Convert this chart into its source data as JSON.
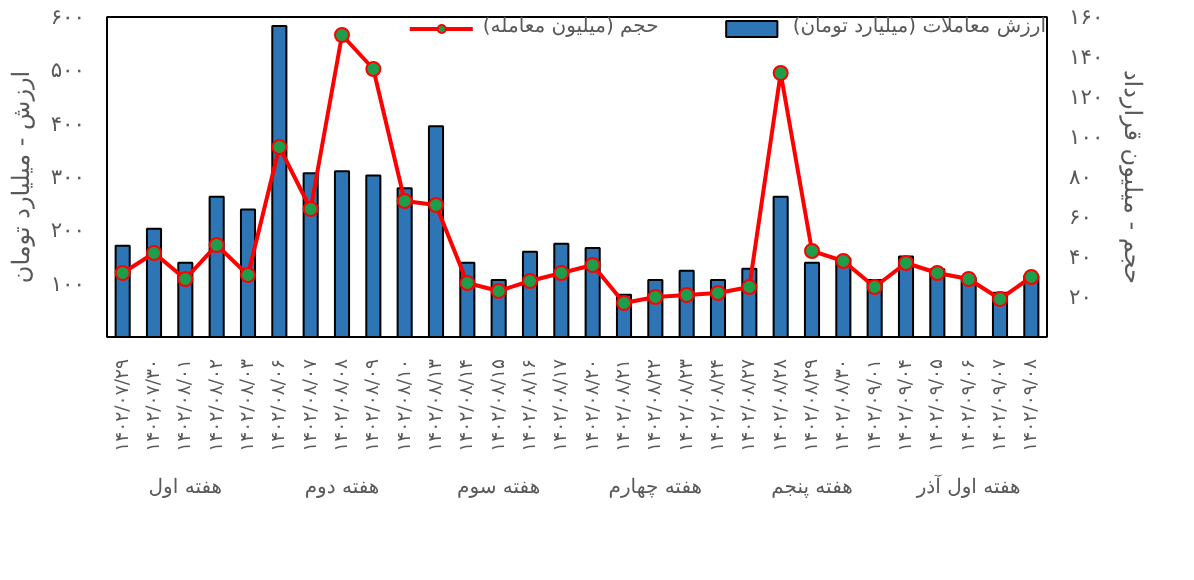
{
  "chart_data": {
    "type": "bar",
    "categories": [
      "۱۴۰۲/۰۷/۲۹",
      "۱۴۰۲/۰۷/۳۰",
      "۱۴۰۲/۰۸/۰۱",
      "۱۴۰۲/۰۸/۰۲",
      "۱۴۰۲/۰۸/۰۳",
      "۱۴۰۲/۰۸/۰۶",
      "۱۴۰۲/۰۸/۰۷",
      "۱۴۰۲/۰۸/۰۸",
      "۱۴۰۲/۰۸/۰۹",
      "۱۴۰۲/۰۸/۱۰",
      "۱۴۰۲/۰۸/۱۳",
      "۱۴۰۲/۰۸/۱۴",
      "۱۴۰۲/۰۸/۱۵",
      "۱۴۰۲/۰۸/۱۶",
      "۱۴۰۲/۰۸/۱۷",
      "۱۴۰۲/۰۸/۲۰",
      "۱۴۰۲/۰۸/۲۱",
      "۱۴۰۲/۰۸/۲۲",
      "۱۴۰۲/۰۸/۲۳",
      "۱۴۰۲/۰۸/۲۴",
      "۱۴۰۲/۰۸/۲۷",
      "۱۴۰۲/۰۸/۲۸",
      "۱۴۰۲/۰۸/۲۹",
      "۱۴۰۲/۰۸/۳۰",
      "۱۴۰۲/۰۹/۰۱",
      "۱۴۰۲/۰۹/۰۴",
      "۱۴۰۲/۰۹/۰۵",
      "۱۴۰۲/۰۹/۰۶",
      "۱۴۰۲/۰۹/۰۷",
      "۱۴۰۲/۰۹/۰۸"
    ],
    "series": [
      {
        "name": "ارزش معاملات (میلیارد تومان)",
        "color": "#2e75b6",
        "values": [
          171,
          203,
          139,
          263,
          239,
          583,
          307,
          311,
          303,
          279,
          395,
          139,
          107,
          160,
          175,
          167,
          79,
          107,
          124,
          107,
          128,
          263,
          139,
          147,
          107,
          151,
          127,
          111,
          83,
          115
        ]
      },
      {
        "name": "حجم (میلیون معامله)",
        "type": "line",
        "axis": "y2",
        "color": "#ff0000",
        "marker": "circle",
        "values": [
          32,
          42,
          29,
          46,
          31,
          95,
          64,
          151,
          134,
          68,
          66,
          27,
          23,
          28,
          32,
          36,
          17,
          20,
          21,
          22,
          25,
          132,
          43,
          38,
          25,
          37,
          32,
          29,
          19,
          30
        ]
      }
    ],
    "ylabel": "ارزش - میلیارد تومان",
    "y2label": "حجم - میلیون قرارداد",
    "ylim": [
      0,
      600
    ],
    "yticks": [
      {
        "value": 100,
        "label": "۱۰۰"
      },
      {
        "value": 200,
        "label": "۲۰۰"
      },
      {
        "value": 300,
        "label": "۳۰۰"
      },
      {
        "value": 400,
        "label": "۴۰۰"
      },
      {
        "value": 500,
        "label": "۵۰۰"
      },
      {
        "value": 600,
        "label": "۶۰۰"
      }
    ],
    "y2lim": [
      0,
      160
    ],
    "y2ticks": [
      {
        "value": 20,
        "label": "۲۰"
      },
      {
        "value": 40,
        "label": "۴۰"
      },
      {
        "value": 60,
        "label": "۶۰"
      },
      {
        "value": 80,
        "label": "۸۰"
      },
      {
        "value": 100,
        "label": "۱۰۰"
      },
      {
        "value": 120,
        "label": "۱۲۰"
      },
      {
        "value": 140,
        "label": "۱۴۰"
      },
      {
        "value": 160,
        "label": "۱۶۰"
      }
    ],
    "annotations": [
      "هفته اول",
      "هفته دوم",
      "هفته سوم",
      "هفته چهارم",
      "هفته پنجم",
      "هفته اول آذر"
    ],
    "legend": "top right",
    "grid": false
  }
}
